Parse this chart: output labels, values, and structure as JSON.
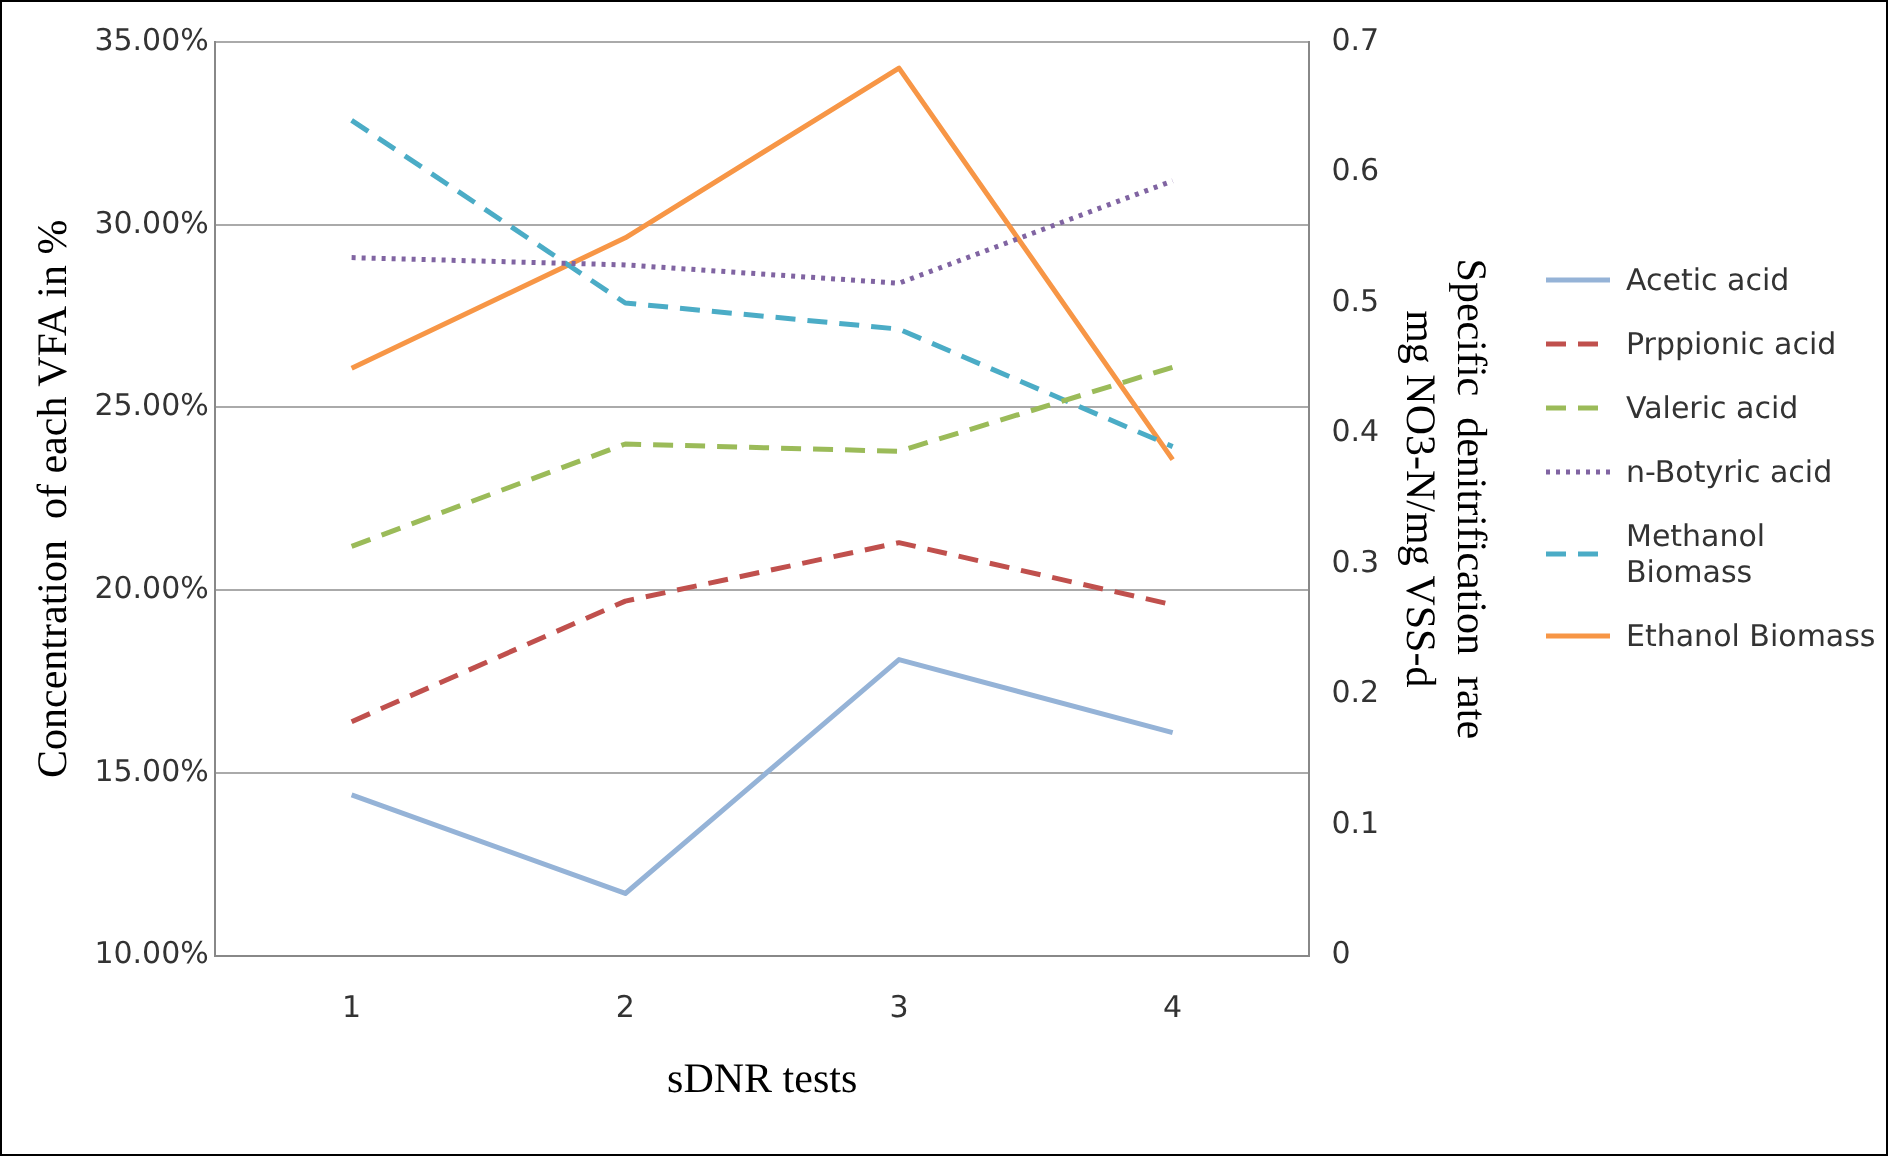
{
  "chart_data": {
    "type": "line",
    "xlabel": "sDNR tests",
    "ylabel": "Concentration  of each VFA in %",
    "y2label": "Specific  denitrification  rate\nmg NO3-N/mg VSS-d",
    "categories": [
      "1",
      "2",
      "3",
      "4"
    ],
    "series": [
      {
        "name": "Acetic acid",
        "color": "#95b3d7",
        "line_style": "solid",
        "values": [
          14.4,
          11.7,
          18.1,
          16.1
        ]
      },
      {
        "name": "Prppionic acid",
        "color": "#c0504d",
        "line_style": "dashed",
        "values": [
          16.4,
          19.7,
          21.3,
          19.6
        ]
      },
      {
        "name": "Valeric acid",
        "color": "#9bbb59",
        "line_style": "dashed",
        "values": [
          21.2,
          24.0,
          23.8,
          26.1
        ]
      },
      {
        "name": "n-Botyric acid",
        "color": "#8064a2",
        "line_style": "dotted",
        "values": [
          29.1,
          28.9,
          28.4,
          31.2
        ]
      },
      {
        "name": "Methanol Biomass",
        "color": "#4bacc6",
        "line_style": "dashed",
        "axis": "y2",
        "values": [
          0.64,
          0.5,
          0.48,
          0.39
        ]
      },
      {
        "name": "Ethanol Biomass",
        "color": "#f79646",
        "line_style": "solid",
        "axis": "y2",
        "values": [
          0.45,
          0.55,
          0.68,
          0.38
        ]
      }
    ],
    "ylim": [
      10,
      35
    ],
    "yticks": [
      {
        "value": 10,
        "label": "10.00%"
      },
      {
        "value": 15,
        "label": "15.00%"
      },
      {
        "value": 20,
        "label": "20.00%"
      },
      {
        "value": 25,
        "label": "25.00%"
      },
      {
        "value": 30,
        "label": "30.00%"
      },
      {
        "value": 35,
        "label": "35.00%"
      }
    ],
    "y2lim": [
      0,
      0.7
    ],
    "y2ticks": [
      0,
      0.1,
      0.2,
      0.3,
      0.4,
      0.5,
      0.6,
      0.7
    ],
    "grid": "y",
    "legend": "right",
    "marker": "none"
  }
}
